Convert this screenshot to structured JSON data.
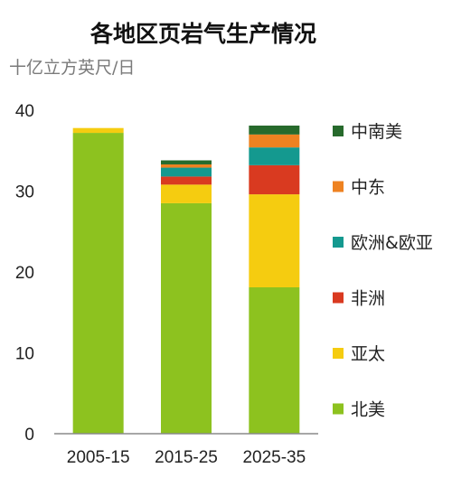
{
  "chart_data": {
    "type": "bar",
    "stacked": true,
    "title": "各地区页岩气生产情况",
    "unit_label": "十亿立方英尺/日",
    "categories": [
      "2005-15",
      "2015-25",
      "2025-35"
    ],
    "ylim": [
      0,
      40
    ],
    "yticks": [
      0,
      10,
      20,
      30,
      40
    ],
    "grid": false,
    "legend_position": "right",
    "series": [
      {
        "name": "北美",
        "color": "#8dc21f",
        "values": [
          37.2,
          28.5,
          18.1
        ]
      },
      {
        "name": "亚太",
        "color": "#f5cc10",
        "values": [
          0.6,
          2.3,
          11.5
        ]
      },
      {
        "name": "非洲",
        "color": "#d93a20",
        "values": [
          0.0,
          1.0,
          3.6
        ]
      },
      {
        "name": "欧洲&欧亚",
        "color": "#14998f",
        "values": [
          0.0,
          1.1,
          2.2
        ]
      },
      {
        "name": "中东",
        "color": "#ee8221",
        "values": [
          0.0,
          0.4,
          1.6
        ]
      },
      {
        "name": "中南美",
        "color": "#276a2c",
        "values": [
          0.0,
          0.5,
          1.1
        ]
      }
    ]
  }
}
